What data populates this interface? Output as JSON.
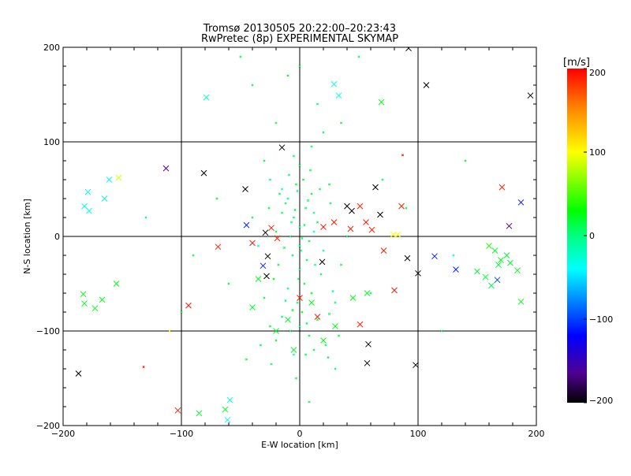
{
  "chart_data": {
    "type": "scatter",
    "title": "Tromsø 20130505 20:22:00–20:23:43",
    "subtitle": "RwPretec (8p) EXPERIMENTAL SKYMAP",
    "xlabel": "E-W location [km]",
    "ylabel": "N-S location [km]",
    "xlim": [
      -200,
      200
    ],
    "ylim": [
      -200,
      200
    ],
    "xticks": [
      -200,
      -100,
      0,
      100,
      200
    ],
    "yticks": [
      -200,
      -100,
      0,
      100,
      200
    ],
    "xtick_labels": [
      "−200",
      "−100",
      "0",
      "100",
      "200"
    ],
    "ytick_labels": [
      "−200",
      "−100",
      "0",
      "100",
      "200"
    ],
    "grid": true,
    "colorbar": {
      "label": "[m/s]",
      "range": [
        -200,
        200
      ],
      "ticks": [
        200,
        100,
        0,
        -100,
        -200
      ],
      "tick_labels": [
        "200",
        "100",
        "0",
        "−100",
        "−200"
      ],
      "stops": [
        {
          "v": 200,
          "color": "#ff0000"
        },
        {
          "v": 150,
          "color": "#ff8c00"
        },
        {
          "v": 100,
          "color": "#ffff00"
        },
        {
          "v": 30,
          "color": "#00ff00"
        },
        {
          "v": 0,
          "color": "#00ff80"
        },
        {
          "v": -40,
          "color": "#00ffff"
        },
        {
          "v": -120,
          "color": "#0000ff"
        },
        {
          "v": -165,
          "color": "#500090"
        },
        {
          "v": -200,
          "color": "#000000"
        }
      ]
    },
    "point_format": [
      "x_km",
      "y_km",
      "velocity_m_s"
    ],
    "large_markers": [
      [
        195,
        149,
        -200
      ],
      [
        107,
        160,
        -200
      ],
      [
        92,
        199,
        -200
      ],
      [
        -15,
        94,
        -200
      ],
      [
        -81,
        67,
        -200
      ],
      [
        -113,
        72,
        -165
      ],
      [
        -153,
        62,
        90
      ],
      [
        -161,
        60,
        -40
      ],
      [
        -179,
        47,
        -35
      ],
      [
        -182,
        32,
        -35
      ],
      [
        -178,
        27,
        -40
      ],
      [
        -165,
        40,
        -30
      ],
      [
        187,
        36,
        -110
      ],
      [
        171,
        52,
        190
      ],
      [
        177,
        11,
        -170
      ],
      [
        114,
        -21,
        -110
      ],
      [
        132,
        -35,
        -110
      ],
      [
        167,
        -46,
        -100
      ],
      [
        91,
        -23,
        -200
      ],
      [
        100,
        -39,
        -200
      ],
      [
        58,
        -114,
        -200
      ],
      [
        57,
        -134,
        -200
      ],
      [
        98,
        -136,
        -200
      ],
      [
        -187,
        -145,
        -200
      ],
      [
        -103,
        -184,
        190
      ],
      [
        -85,
        -187,
        20
      ],
      [
        -63,
        -183,
        20
      ],
      [
        -59,
        -173,
        -30
      ],
      [
        -61,
        -194,
        -40
      ],
      [
        -94,
        -73,
        190
      ],
      [
        51,
        -93,
        190
      ],
      [
        80,
        -57,
        190
      ],
      [
        71,
        -15,
        190
      ],
      [
        61,
        7,
        190
      ],
      [
        86,
        32,
        190
      ],
      [
        69,
        142,
        25
      ],
      [
        33,
        149,
        -30
      ],
      [
        29,
        161,
        -30
      ],
      [
        -79,
        147,
        -30
      ],
      [
        -183,
        -61,
        25
      ],
      [
        -182,
        -71,
        25
      ],
      [
        -167,
        -67,
        25
      ],
      [
        -155,
        -50,
        25
      ],
      [
        -173,
        -76,
        25
      ],
      [
        187,
        -69,
        25
      ],
      [
        184,
        -36,
        25
      ],
      [
        150,
        -37,
        20
      ],
      [
        157,
        -43,
        15
      ],
      [
        162,
        -52,
        10
      ],
      [
        165,
        -15,
        20
      ],
      [
        170,
        -25,
        25
      ],
      [
        175,
        -20,
        20
      ],
      [
        168,
        -30,
        15
      ],
      [
        160,
        -10,
        40
      ],
      [
        178,
        -28,
        20
      ],
      [
        -46,
        50,
        -200
      ],
      [
        -45,
        12,
        -110
      ],
      [
        -29,
        4,
        -200
      ],
      [
        -27,
        -21,
        -200
      ],
      [
        -28,
        -42,
        -200
      ],
      [
        -31,
        -31,
        -110
      ],
      [
        40,
        32,
        -200
      ],
      [
        44,
        27,
        -200
      ],
      [
        19,
        -27,
        -200
      ],
      [
        51,
        32,
        190
      ],
      [
        56,
        15,
        190
      ],
      [
        29,
        15,
        190
      ],
      [
        43,
        8,
        190
      ],
      [
        20,
        10,
        190
      ],
      [
        -69,
        -11,
        190
      ],
      [
        -40,
        -7,
        190
      ],
      [
        -24,
        9,
        190
      ],
      [
        -19,
        -2,
        190
      ],
      [
        83,
        2,
        100
      ],
      [
        79,
        2,
        100
      ],
      [
        64,
        52,
        -200
      ],
      [
        68,
        23,
        -200
      ],
      [
        57,
        -60,
        20
      ],
      [
        45,
        -65,
        25
      ],
      [
        -10,
        -88,
        20
      ],
      [
        15,
        -85,
        190
      ],
      [
        -5,
        -120,
        20
      ],
      [
        30,
        -95,
        25
      ],
      [
        -20,
        -100,
        20
      ],
      [
        10,
        -70,
        25
      ],
      [
        -40,
        -75,
        20
      ],
      [
        20,
        -110,
        25
      ],
      [
        0,
        -65,
        190
      ],
      [
        -35,
        -45,
        20
      ]
    ],
    "small_markers": [
      [
        0,
        10,
        5
      ],
      [
        -5,
        20,
        10
      ],
      [
        5,
        30,
        15
      ],
      [
        -10,
        40,
        0
      ],
      [
        10,
        45,
        20
      ],
      [
        -15,
        25,
        8
      ],
      [
        15,
        15,
        12
      ],
      [
        -8,
        0,
        -5
      ],
      [
        8,
        -5,
        10
      ],
      [
        0,
        -10,
        3
      ],
      [
        -20,
        5,
        15
      ],
      [
        20,
        -15,
        -10
      ],
      [
        -3,
        55,
        18
      ],
      [
        3,
        60,
        22
      ],
      [
        -12,
        35,
        5
      ],
      [
        12,
        25,
        -8
      ],
      [
        -6,
        -20,
        10
      ],
      [
        6,
        -25,
        14
      ],
      [
        0,
        -35,
        0
      ],
      [
        -18,
        -30,
        20
      ],
      [
        18,
        -40,
        5
      ],
      [
        4,
        -50,
        12
      ],
      [
        -10,
        -55,
        -15
      ],
      [
        10,
        -60,
        25
      ],
      [
        -2,
        -70,
        8
      ],
      [
        2,
        -80,
        16
      ],
      [
        -15,
        -85,
        4
      ],
      [
        15,
        -88,
        20
      ],
      [
        0,
        -95,
        -5
      ],
      [
        -8,
        -100,
        10
      ],
      [
        8,
        -105,
        12
      ],
      [
        -20,
        -110,
        18
      ],
      [
        22,
        -115,
        6
      ],
      [
        -5,
        -125,
        -12
      ],
      [
        5,
        -125,
        15
      ],
      [
        -25,
        -95,
        20
      ],
      [
        25,
        -82,
        10
      ],
      [
        30,
        -70,
        5
      ],
      [
        -30,
        -65,
        14
      ],
      [
        35,
        -30,
        18
      ],
      [
        -35,
        -10,
        -8
      ],
      [
        40,
        0,
        10
      ],
      [
        -40,
        20,
        5
      ],
      [
        25,
        55,
        12
      ],
      [
        -25,
        60,
        -5
      ],
      [
        0,
        75,
        20
      ],
      [
        -5,
        85,
        10
      ],
      [
        10,
        95,
        5
      ],
      [
        -30,
        80,
        15
      ],
      [
        35,
        120,
        20
      ],
      [
        -20,
        120,
        10
      ],
      [
        15,
        140,
        5
      ],
      [
        -40,
        160,
        12
      ],
      [
        0,
        180,
        18
      ],
      [
        -45,
        -130,
        20
      ],
      [
        30,
        -140,
        8
      ],
      [
        -60,
        -50,
        15
      ],
      [
        60,
        -60,
        10
      ],
      [
        -70,
        40,
        20
      ],
      [
        70,
        60,
        5
      ],
      [
        -90,
        -20,
        12
      ],
      [
        90,
        30,
        18
      ],
      [
        -100,
        -80,
        20
      ],
      [
        120,
        -100,
        6
      ],
      [
        -130,
        20,
        -5
      ],
      [
        140,
        80,
        15
      ],
      [
        -50,
        190,
        12
      ],
      [
        50,
        190,
        8
      ],
      [
        -10,
        170,
        25
      ],
      [
        20,
        110,
        10
      ],
      [
        -15,
        50,
        -20
      ],
      [
        12,
        5,
        -25
      ],
      [
        -22,
        -45,
        30
      ],
      [
        28,
        -58,
        -15
      ],
      [
        -3,
        -150,
        12
      ],
      [
        8,
        -175,
        10
      ],
      [
        -7,
        15,
        0
      ],
      [
        7,
        38,
        8
      ],
      [
        -2,
        48,
        -10
      ],
      [
        2,
        -2,
        6
      ],
      [
        -13,
        -12,
        18
      ],
      [
        13,
        -30,
        2
      ],
      [
        -4,
        28,
        22
      ],
      [
        4,
        12,
        -3
      ],
      [
        -17,
        45,
        14
      ],
      [
        17,
        50,
        10
      ],
      [
        -9,
        65,
        6
      ],
      [
        9,
        70,
        16
      ],
      [
        -1,
        -45,
        20
      ],
      [
        1,
        -15,
        -2
      ],
      [
        -26,
        30,
        12
      ],
      [
        26,
        35,
        4
      ],
      [
        -6,
        -78,
        24
      ],
      [
        6,
        -92,
        8
      ],
      [
        -12,
        -68,
        -6
      ],
      [
        12,
        -120,
        14
      ],
      [
        -33,
        -115,
        10
      ],
      [
        33,
        -105,
        18
      ],
      [
        -24,
        -135,
        6
      ],
      [
        24,
        -128,
        12
      ],
      [
        -132,
        -138,
        190
      ],
      [
        87,
        86,
        190
      ],
      [
        -110,
        -100,
        100
      ],
      [
        130,
        -20,
        -30
      ]
    ]
  }
}
